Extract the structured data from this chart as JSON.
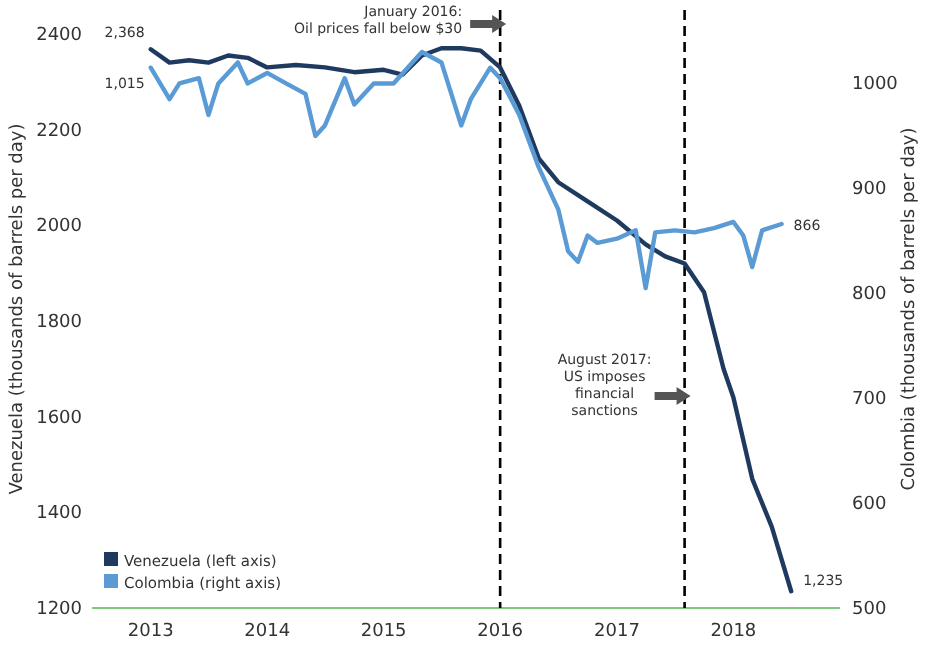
{
  "chart_data": {
    "type": "line",
    "ylabel": "Venezuela (thousands of barrels per day)",
    "y2label": "Colombia (thousands of barrels per day)",
    "xlim": [
      "2012-07",
      "2018-12"
    ],
    "xticks": [
      {
        "value": "2013-01",
        "label": "2013"
      },
      {
        "value": "2014-01",
        "label": "2014"
      },
      {
        "value": "2015-01",
        "label": "2015"
      },
      {
        "value": "2016-01",
        "label": "2016"
      },
      {
        "value": "2017-01",
        "label": "2017"
      },
      {
        "value": "2018-01",
        "label": "2018"
      }
    ],
    "ylim": [
      1200,
      2450
    ],
    "yticks": [
      1200,
      1400,
      1600,
      1800,
      2000,
      2200,
      2400
    ],
    "y2lim": [
      500,
      1070
    ],
    "y2ticks": [
      500,
      600,
      700,
      800,
      900,
      1000
    ],
    "grid": false,
    "legend": "bottom left",
    "line_style": "solid",
    "marker": "none",
    "series": [
      {
        "name": "Venezuela (left axis)",
        "color": "#1f3a5f",
        "axis": "y",
        "x": [
          "2013-01",
          "2013-03",
          "2013-05",
          "2013-07",
          "2013-09",
          "2013-11",
          "2014-01",
          "2014-04",
          "2014-07",
          "2014-10",
          "2015-01",
          "2015-03",
          "2015-05",
          "2015-07",
          "2015-09",
          "2015-11",
          "2016-01",
          "2016-03",
          "2016-05",
          "2016-07",
          "2016-10",
          "2017-01",
          "2017-04",
          "2017-06",
          "2017-08",
          "2017-10",
          "2017-12",
          "2018-01",
          "2018-03",
          "2018-05",
          "2018-07"
        ],
        "values": [
          2368,
          2340,
          2345,
          2340,
          2355,
          2350,
          2330,
          2335,
          2330,
          2320,
          2325,
          2315,
          2355,
          2370,
          2370,
          2365,
          2330,
          2250,
          2140,
          2090,
          2050,
          2010,
          1960,
          1935,
          1920,
          1860,
          1700,
          1640,
          1470,
          1370,
          1235
        ],
        "value_labels": [
          "2,368",
          null,
          null,
          null,
          null,
          null,
          null,
          null,
          null,
          null,
          null,
          null,
          null,
          null,
          null,
          null,
          null,
          null,
          null,
          null,
          null,
          null,
          null,
          null,
          null,
          null,
          null,
          null,
          null,
          null,
          "1,235"
        ]
      },
      {
        "name": "Colombia (right axis)",
        "color": "#5b9bd5",
        "axis": "y2",
        "x": [
          "2013-01",
          "2013-03",
          "2013-04",
          "2013-06",
          "2013-07",
          "2013-08",
          "2013-10",
          "2013-11",
          "2014-01",
          "2014-03",
          "2014-05",
          "2014-06",
          "2014-07",
          "2014-09",
          "2014-10",
          "2014-12",
          "2015-02",
          "2015-04",
          "2015-05",
          "2015-07",
          "2015-09",
          "2015-10",
          "2015-12",
          "2016-01",
          "2016-03",
          "2016-05",
          "2016-07",
          "2016-08",
          "2016-09",
          "2016-10",
          "2016-11",
          "2017-01",
          "2017-03",
          "2017-04",
          "2017-05",
          "2017-07",
          "2017-09",
          "2017-11",
          "2018-01",
          "2018-02",
          "2018-03",
          "2018-04",
          "2018-06"
        ],
        "values": [
          1015,
          985,
          1000,
          1005,
          970,
          1000,
          1020,
          1000,
          1010,
          1000,
          990,
          950,
          960,
          1005,
          980,
          1000,
          1000,
          1020,
          1030,
          1020,
          960,
          985,
          1015,
          1005,
          970,
          920,
          880,
          840,
          830,
          855,
          848,
          852,
          860,
          805,
          858,
          860,
          858,
          862,
          868,
          855,
          825,
          860,
          866
        ],
        "value_labels": [
          "1,015",
          null,
          null,
          null,
          null,
          null,
          null,
          null,
          null,
          null,
          null,
          null,
          null,
          null,
          null,
          null,
          null,
          null,
          null,
          null,
          null,
          null,
          null,
          null,
          null,
          null,
          null,
          null,
          null,
          null,
          null,
          null,
          null,
          null,
          null,
          null,
          null,
          null,
          null,
          null,
          null,
          null,
          "866"
        ]
      }
    ],
    "ref_lines": [
      {
        "axis": "x",
        "value": "2016-01",
        "label": "January 2016:\nOil prices fall below $30",
        "line_style": "dashed",
        "color": "#000000"
      },
      {
        "axis": "x",
        "value": "2017-08",
        "label": "August 2017:\nUS imposes\nfinancial\nsanctions",
        "line_style": "dashed",
        "color": "#000000"
      }
    ]
  }
}
